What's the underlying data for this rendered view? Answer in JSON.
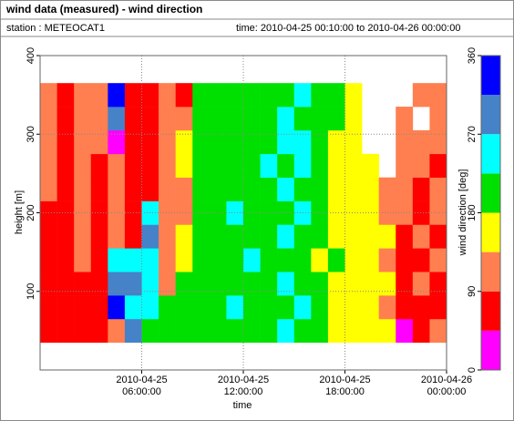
{
  "chart_data": {
    "type": "heatmap",
    "title": "wind data (measured) - wind direction",
    "station_label": "station : METEOCAT1",
    "time_label": "time: 2010-04-25 00:10:00 to 2010-04-26 00:00:00",
    "x_label": "time",
    "y_label": "height [m]",
    "xlim": [
      0,
      24
    ],
    "xticks": [
      {
        "value": 6,
        "label": "2010-04-25\n06:00:00"
      },
      {
        "value": 12,
        "label": "2010-04-25\n12:00:00"
      },
      {
        "value": 18,
        "label": "2010-04-25\n18:00:00"
      },
      {
        "value": 24,
        "label": "2010-04-26\n00:00:00"
      }
    ],
    "ylim": [
      0,
      400
    ],
    "yticks": [
      100,
      200,
      300,
      400
    ],
    "grid": true,
    "x": [
      0.5,
      1.5,
      2.5,
      3.5,
      4.5,
      5.5,
      6.5,
      7.5,
      8.5,
      9.5,
      10.5,
      11.5,
      12.5,
      13.5,
      14.5,
      15.5,
      16.5,
      17.5,
      18.5,
      19.5,
      20.5,
      21.5,
      22.5,
      23.5
    ],
    "y": [
      50,
      80,
      110,
      140,
      170,
      200,
      230,
      260,
      290,
      320,
      350
    ],
    "z": [
      [
        70,
        70,
        70,
        70,
        110,
        290,
        200,
        200,
        200,
        200,
        200,
        200,
        200,
        200,
        240,
        200,
        200,
        150,
        150,
        150,
        150,
        20,
        70,
        110
      ],
      [
        70,
        70,
        70,
        70,
        340,
        240,
        240,
        200,
        200,
        200,
        200,
        240,
        200,
        200,
        200,
        240,
        200,
        150,
        150,
        150,
        110,
        70,
        70,
        70
      ],
      [
        70,
        70,
        70,
        70,
        290,
        290,
        240,
        110,
        200,
        200,
        200,
        200,
        200,
        200,
        240,
        200,
        200,
        150,
        150,
        150,
        150,
        70,
        110,
        70
      ],
      [
        70,
        70,
        110,
        70,
        240,
        240,
        240,
        110,
        150,
        200,
        200,
        200,
        240,
        200,
        200,
        200,
        150,
        200,
        150,
        150,
        110,
        70,
        70,
        110
      ],
      [
        70,
        70,
        110,
        70,
        110,
        70,
        290,
        110,
        150,
        200,
        200,
        200,
        200,
        200,
        240,
        200,
        200,
        150,
        150,
        150,
        150,
        70,
        110,
        70
      ],
      [
        70,
        70,
        110,
        70,
        110,
        70,
        240,
        110,
        110,
        200,
        200,
        240,
        200,
        200,
        200,
        240,
        200,
        150,
        150,
        150,
        110,
        110,
        70,
        110
      ],
      [
        110,
        70,
        110,
        70,
        110,
        70,
        70,
        110,
        110,
        200,
        200,
        200,
        200,
        200,
        240,
        200,
        200,
        150,
        150,
        150,
        110,
        110,
        70,
        110
      ],
      [
        110,
        70,
        110,
        70,
        110,
        70,
        70,
        110,
        150,
        200,
        200,
        200,
        200,
        240,
        200,
        240,
        200,
        150,
        150,
        150,
        null,
        110,
        110,
        70
      ],
      [
        110,
        70,
        110,
        110,
        20,
        70,
        70,
        110,
        150,
        200,
        200,
        200,
        200,
        200,
        240,
        240,
        200,
        150,
        150,
        null,
        null,
        110,
        110,
        110
      ],
      [
        110,
        70,
        110,
        110,
        290,
        70,
        70,
        110,
        110,
        200,
        200,
        200,
        200,
        200,
        240,
        200,
        200,
        200,
        150,
        null,
        null,
        110,
        null,
        110
      ],
      [
        110,
        70,
        110,
        110,
        340,
        70,
        70,
        110,
        70,
        200,
        200,
        200,
        200,
        200,
        200,
        240,
        200,
        200,
        150,
        null,
        null,
        null,
        110,
        110
      ]
    ],
    "colorbar": {
      "label": "wind direction [deg]",
      "lim": [
        0,
        360
      ],
      "ticks": [
        0,
        90,
        180,
        270,
        360
      ],
      "colors": [
        "#ff00ff",
        "#ff0000",
        "#ff7f50",
        "#ffff00",
        "#00e000",
        "#00ffff",
        "#4682c8",
        "#0000ff"
      ]
    }
  }
}
